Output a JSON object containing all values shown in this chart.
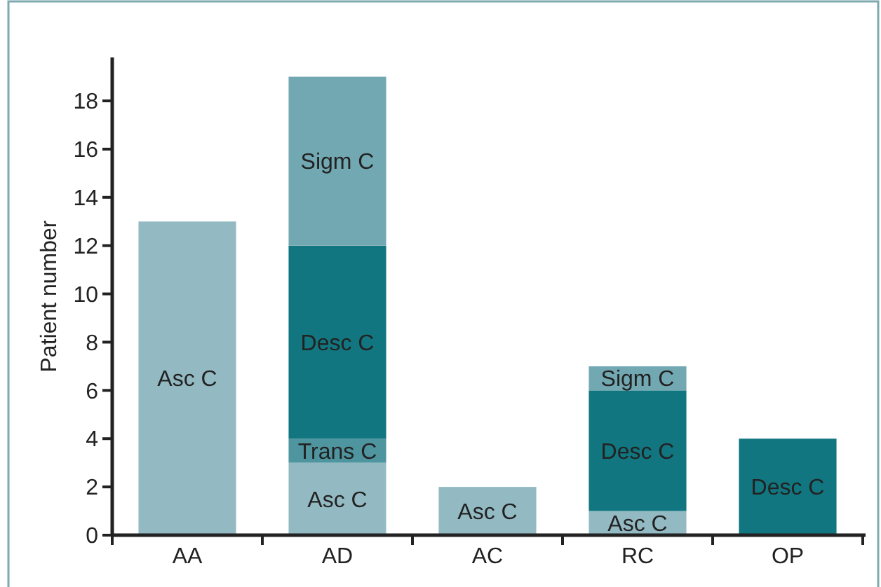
{
  "chart_data": {
    "type": "bar",
    "stacked": true,
    "ylabel": "Patient number",
    "categories": [
      "AA",
      "AD",
      "AC",
      "RC",
      "OP"
    ],
    "series": [
      {
        "name": "Asc C",
        "color": "#93bac3",
        "values": [
          13,
          3,
          2,
          1,
          null
        ]
      },
      {
        "name": "Trans C",
        "color": "#4f959f",
        "values": [
          null,
          1,
          null,
          null,
          null
        ]
      },
      {
        "name": "Desc C",
        "color": "#127680",
        "values": [
          null,
          8,
          null,
          5,
          4
        ]
      },
      {
        "name": "Sigm C",
        "color": "#72a8b2",
        "values": [
          null,
          7,
          null,
          1,
          null
        ]
      }
    ],
    "ylim": [
      0,
      19.8
    ],
    "yticks": [
      0,
      2,
      4,
      6,
      8,
      10,
      12,
      14,
      16,
      18
    ],
    "grid": false
  }
}
